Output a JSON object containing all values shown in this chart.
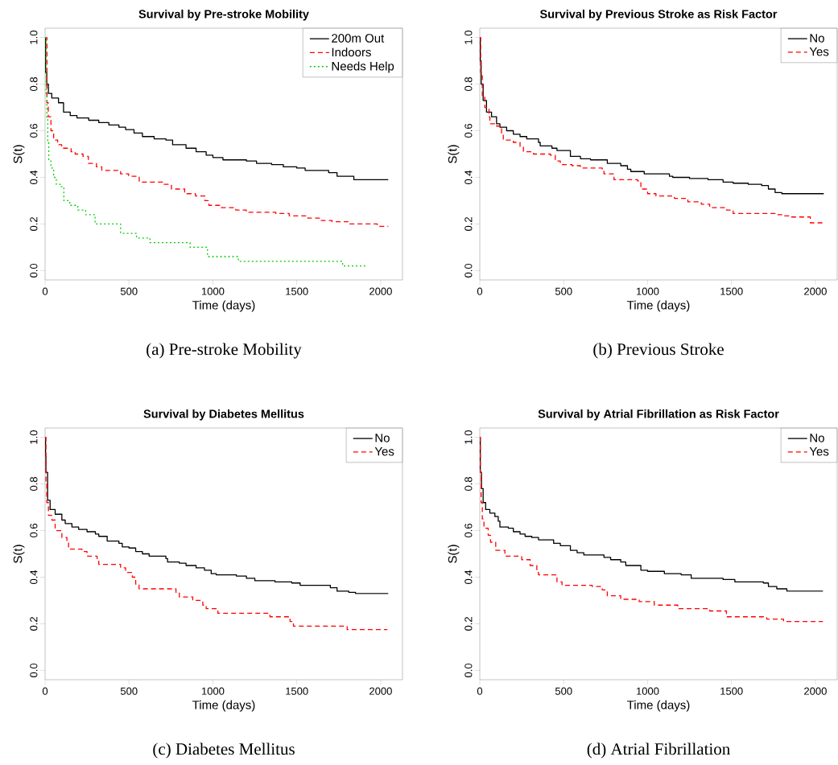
{
  "chart_data": [
    {
      "type": "step",
      "title": "Survival by Pre-stroke Mobility",
      "xlabel": "Time (days)",
      "ylabel": "S(t)",
      "annotations": [
        "(a) Pre-stroke Mobility"
      ],
      "legend": "top right",
      "xlim": [
        0,
        2130
      ],
      "ylim": [
        -0.04,
        1.04
      ],
      "xticks": [
        0,
        500,
        1000,
        1500,
        2000
      ],
      "yticks": [
        {
          "value": 0,
          "label": "0.0"
        },
        {
          "value": 0.2,
          "label": "0.2"
        },
        {
          "value": 0.4,
          "label": "0.4"
        },
        {
          "value": 0.6,
          "label": "0.6"
        },
        {
          "value": 0.8,
          "label": "0.8"
        },
        {
          "value": 1,
          "label": "1.0"
        }
      ],
      "series": [
        {
          "name": "200m Out",
          "color": "#000000",
          "line_style": "solid",
          "x": [
            0,
            3,
            10,
            20,
            40,
            80,
            110,
            150,
            190,
            260,
            320,
            380,
            440,
            480,
            530,
            580,
            650,
            720,
            760,
            840,
            900,
            960,
            1000,
            1060,
            1200,
            1260,
            1350,
            1420,
            1500,
            1550,
            1690,
            1740,
            1840,
            2045
          ],
          "values": [
            1.0,
            0.85,
            0.8,
            0.76,
            0.74,
            0.72,
            0.68,
            0.665,
            0.655,
            0.645,
            0.635,
            0.625,
            0.615,
            0.605,
            0.59,
            0.575,
            0.565,
            0.56,
            0.54,
            0.525,
            0.51,
            0.495,
            0.485,
            0.475,
            0.47,
            0.46,
            0.455,
            0.445,
            0.44,
            0.43,
            0.42,
            0.405,
            0.39,
            0.39
          ]
        },
        {
          "name": "Indoors",
          "color": "#ff0000",
          "line_style": "dashed",
          "x": [
            0,
            11,
            19,
            35,
            51,
            75,
            99,
            155,
            179,
            226,
            258,
            306,
            338,
            450,
            498,
            561,
            705,
            753,
            832,
            896,
            952,
            976,
            1040,
            1136,
            1199,
            1375,
            1455,
            1566,
            1646,
            1710,
            1805,
            1980,
            2045
          ],
          "values": [
            1.0,
            0.72,
            0.66,
            0.6,
            0.56,
            0.54,
            0.525,
            0.51,
            0.5,
            0.49,
            0.46,
            0.445,
            0.43,
            0.415,
            0.405,
            0.38,
            0.37,
            0.35,
            0.33,
            0.32,
            0.3,
            0.28,
            0.27,
            0.26,
            0.25,
            0.245,
            0.235,
            0.225,
            0.215,
            0.21,
            0.2,
            0.19,
            0.19
          ]
        },
        {
          "name": "Needs Help",
          "color": "#00cd00",
          "line_style": "dotted",
          "x": [
            0,
            6,
            11,
            16,
            22,
            35,
            51,
            67,
            91,
            112,
            147,
            195,
            242,
            298,
            450,
            545,
            625,
            864,
            968,
            1152,
            1773,
            1909
          ],
          "values": [
            1.0,
            0.75,
            0.65,
            0.55,
            0.47,
            0.44,
            0.4,
            0.37,
            0.36,
            0.3,
            0.28,
            0.26,
            0.24,
            0.2,
            0.16,
            0.14,
            0.12,
            0.1,
            0.06,
            0.04,
            0.02,
            0.02
          ]
        }
      ]
    },
    {
      "type": "step",
      "title": "Survival by Previous Stroke as Risk Factor",
      "xlabel": "Time (days)",
      "ylabel": "S(t)",
      "annotations": [
        "(b) Previous Stroke"
      ],
      "legend": "top right",
      "xlim": [
        0,
        2130
      ],
      "ylim": [
        -0.04,
        1.04
      ],
      "xticks": [
        0,
        500,
        1000,
        1500,
        2000
      ],
      "yticks": [
        {
          "value": 0,
          "label": "0.0"
        },
        {
          "value": 0.2,
          "label": "0.2"
        },
        {
          "value": 0.4,
          "label": "0.4"
        },
        {
          "value": 0.6,
          "label": "0.6"
        },
        {
          "value": 0.8,
          "label": "0.8"
        },
        {
          "value": 1,
          "label": "1.0"
        }
      ],
      "series": [
        {
          "name": "No",
          "color": "#000000",
          "line_style": "solid",
          "x": [
            0,
            3,
            8,
            20,
            40,
            70,
            100,
            120,
            160,
            200,
            240,
            280,
            350,
            360,
            430,
            460,
            540,
            600,
            660,
            760,
            840,
            880,
            900,
            980,
            1130,
            1150,
            1250,
            1360,
            1450,
            1510,
            1600,
            1680,
            1720,
            1760,
            1800,
            2050
          ],
          "values": [
            1.0,
            0.9,
            0.8,
            0.73,
            0.68,
            0.66,
            0.63,
            0.615,
            0.6,
            0.585,
            0.575,
            0.565,
            0.55,
            0.535,
            0.525,
            0.515,
            0.49,
            0.48,
            0.475,
            0.46,
            0.45,
            0.435,
            0.425,
            0.415,
            0.405,
            0.4,
            0.395,
            0.39,
            0.38,
            0.375,
            0.37,
            0.365,
            0.35,
            0.335,
            0.33,
            0.33
          ]
        },
        {
          "name": "Yes",
          "color": "#ff0000",
          "line_style": "dashed",
          "x": [
            0,
            5,
            15,
            30,
            55,
            60,
            100,
            130,
            140,
            200,
            240,
            260,
            320,
            420,
            450,
            480,
            550,
            600,
            730,
            740,
            800,
            940,
            960,
            1000,
            1050,
            1160,
            1240,
            1320,
            1370,
            1470,
            1510,
            1760,
            1800,
            1850,
            1970,
            2045
          ],
          "values": [
            1.0,
            0.85,
            0.75,
            0.7,
            0.66,
            0.63,
            0.62,
            0.59,
            0.56,
            0.55,
            0.53,
            0.51,
            0.5,
            0.495,
            0.47,
            0.455,
            0.45,
            0.44,
            0.435,
            0.415,
            0.39,
            0.385,
            0.35,
            0.33,
            0.32,
            0.31,
            0.295,
            0.285,
            0.27,
            0.26,
            0.245,
            0.24,
            0.235,
            0.23,
            0.205,
            0.205
          ]
        }
      ]
    },
    {
      "type": "step",
      "title": "Survival by Diabetes Mellitus",
      "xlabel": "Time (days)",
      "ylabel": "S(t)",
      "annotations": [
        "(c) Diabetes Mellitus"
      ],
      "legend": "top right",
      "xlim": [
        0,
        2130
      ],
      "ylim": [
        -0.04,
        1.04
      ],
      "xticks": [
        0,
        500,
        1000,
        1500,
        2000
      ],
      "yticks": [
        {
          "value": 0,
          "label": "0.0"
        },
        {
          "value": 0.2,
          "label": "0.2"
        },
        {
          "value": 0.4,
          "label": "0.4"
        },
        {
          "value": 0.6,
          "label": "0.6"
        },
        {
          "value": 0.8,
          "label": "0.8"
        },
        {
          "value": 1,
          "label": "1.0"
        }
      ],
      "series": [
        {
          "name": "No",
          "color": "#000000",
          "line_style": "solid",
          "x": [
            0,
            3,
            5,
            15,
            30,
            60,
            100,
            120,
            160,
            200,
            250,
            300,
            320,
            370,
            440,
            460,
            500,
            540,
            580,
            620,
            720,
            730,
            800,
            840,
            900,
            950,
            990,
            1020,
            1140,
            1200,
            1250,
            1370,
            1470,
            1520,
            1700,
            1740,
            1810,
            1850,
            2045
          ],
          "values": [
            1.0,
            0.92,
            0.85,
            0.73,
            0.69,
            0.67,
            0.645,
            0.63,
            0.615,
            0.605,
            0.595,
            0.585,
            0.575,
            0.555,
            0.545,
            0.53,
            0.525,
            0.51,
            0.5,
            0.49,
            0.48,
            0.465,
            0.46,
            0.45,
            0.44,
            0.43,
            0.415,
            0.41,
            0.405,
            0.395,
            0.385,
            0.38,
            0.375,
            0.365,
            0.355,
            0.34,
            0.335,
            0.33,
            0.33
          ]
        },
        {
          "name": "Yes",
          "color": "#ff0000",
          "line_style": "dashed",
          "x": [
            0,
            5,
            10,
            20,
            40,
            60,
            100,
            130,
            140,
            220,
            250,
            310,
            320,
            450,
            480,
            520,
            540,
            560,
            780,
            800,
            880,
            940,
            960,
            1030,
            1340,
            1460,
            1480,
            1800,
            2040
          ],
          "values": [
            1.0,
            0.8,
            0.72,
            0.665,
            0.645,
            0.6,
            0.57,
            0.55,
            0.52,
            0.51,
            0.49,
            0.475,
            0.455,
            0.44,
            0.42,
            0.4,
            0.37,
            0.35,
            0.335,
            0.315,
            0.3,
            0.28,
            0.265,
            0.245,
            0.23,
            0.21,
            0.19,
            0.175,
            0.175
          ]
        }
      ]
    },
    {
      "type": "step",
      "title": "Survival by Atrial Fibrillation as Risk Factor",
      "xlabel": "Time (days)",
      "ylabel": "S(t)",
      "annotations": [
        "(d) Atrial Fibrillation"
      ],
      "legend": "top right",
      "xlim": [
        0,
        2130
      ],
      "ylim": [
        -0.04,
        1.04
      ],
      "xticks": [
        0,
        500,
        1000,
        1500,
        2000
      ],
      "yticks": [
        {
          "value": 0,
          "label": "0.0"
        },
        {
          "value": 0.2,
          "label": "0.2"
        },
        {
          "value": 0.4,
          "label": "0.4"
        },
        {
          "value": 0.6,
          "label": "0.6"
        },
        {
          "value": 0.8,
          "label": "0.8"
        },
        {
          "value": 1,
          "label": "1.0"
        }
      ],
      "series": [
        {
          "name": "No",
          "color": "#000000",
          "line_style": "solid",
          "x": [
            0,
            3,
            10,
            20,
            35,
            60,
            90,
            110,
            120,
            170,
            200,
            240,
            270,
            310,
            350,
            440,
            480,
            540,
            580,
            620,
            740,
            780,
            840,
            870,
            960,
            1000,
            1100,
            1200,
            1260,
            1450,
            1520,
            1690,
            1720,
            1770,
            1830,
            2045
          ],
          "values": [
            1.0,
            0.85,
            0.78,
            0.72,
            0.69,
            0.675,
            0.66,
            0.64,
            0.615,
            0.61,
            0.595,
            0.585,
            0.575,
            0.57,
            0.56,
            0.545,
            0.535,
            0.515,
            0.505,
            0.495,
            0.485,
            0.475,
            0.465,
            0.45,
            0.43,
            0.425,
            0.415,
            0.41,
            0.395,
            0.39,
            0.38,
            0.375,
            0.36,
            0.35,
            0.34,
            0.34
          ]
        },
        {
          "name": "Yes",
          "color": "#ff0000",
          "line_style": "dashed",
          "x": [
            0,
            3,
            8,
            15,
            25,
            50,
            64,
            95,
            150,
            250,
            300,
            340,
            350,
            460,
            490,
            670,
            730,
            760,
            840,
            950,
            1040,
            1180,
            1370,
            1470,
            1710,
            1810,
            2045
          ],
          "values": [
            1.0,
            0.85,
            0.72,
            0.65,
            0.61,
            0.58,
            0.55,
            0.515,
            0.49,
            0.475,
            0.45,
            0.42,
            0.41,
            0.38,
            0.365,
            0.36,
            0.345,
            0.32,
            0.305,
            0.295,
            0.28,
            0.265,
            0.255,
            0.23,
            0.22,
            0.21,
            0.21
          ]
        }
      ]
    }
  ]
}
